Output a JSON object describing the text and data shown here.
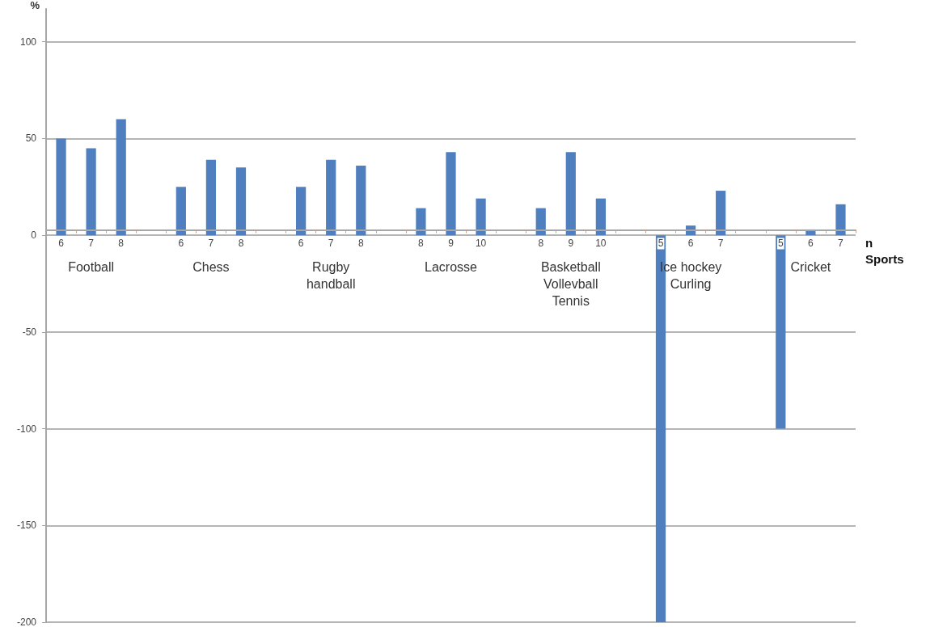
{
  "chart_data": {
    "type": "bar",
    "ylabel": "%",
    "xlabel": "n\nSports",
    "categories": [
      "6",
      "7",
      "8",
      null,
      "6",
      "7",
      "8",
      null,
      "6",
      "7",
      "8",
      null,
      "8",
      "9",
      "10",
      null,
      "8",
      "9",
      "10",
      null,
      "5",
      "6",
      "7",
      null,
      "5",
      "6",
      "7"
    ],
    "values": [
      50,
      45,
      60,
      null,
      25,
      39,
      35,
      null,
      25,
      39,
      36,
      null,
      14,
      43,
      19,
      null,
      14,
      43,
      19,
      null,
      -200,
      5,
      23,
      null,
      -100,
      3,
      16
    ],
    "color": "#4f7fbf",
    "annotations": [
      "Football",
      "Chess",
      "Rugby\nhandball",
      "Lacrosse",
      "Basketball\nVollevball\nTennis",
      "Ice hockey\nCurling",
      "Cricket"
    ],
    "ylim": [
      -200,
      117
    ],
    "yticks": [
      -200,
      -150,
      -100,
      -50,
      0,
      50,
      100
    ],
    "grid": "y"
  }
}
